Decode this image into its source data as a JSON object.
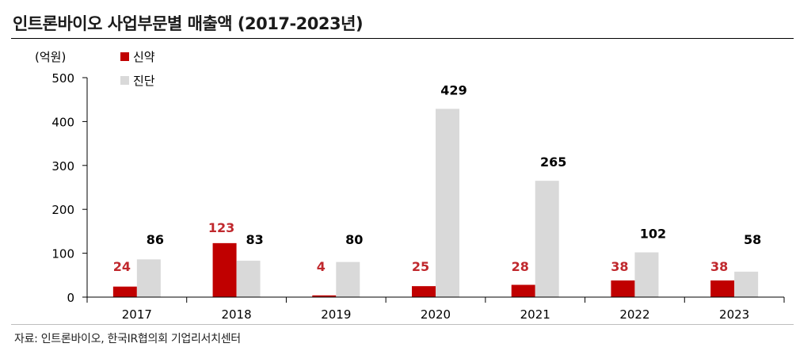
{
  "title": "인트론바이오 사업부문별 매출액 (2017-2023년)",
  "source": "자료: 인트론바이오, 한국IR협의회 기업리서치센터",
  "colors": {
    "series1": "#c00000",
    "series2": "#d9d9d9",
    "label1": "#c0282d",
    "label2": "#000000",
    "axis": "#000000"
  },
  "chart_data": {
    "type": "bar",
    "title": "인트론바이오 사업부문별 매출액 (2017-2023년)",
    "ylabel": "(억원)",
    "xlabel": "",
    "ylim": [
      0,
      500
    ],
    "yticks": [
      0,
      100,
      200,
      300,
      400,
      500
    ],
    "categories": [
      "2017",
      "2018",
      "2019",
      "2020",
      "2021",
      "2022",
      "2023"
    ],
    "series": [
      {
        "name": "신약",
        "values": [
          24,
          123,
          4,
          25,
          28,
          38,
          38
        ]
      },
      {
        "name": "진단",
        "values": [
          86,
          83,
          80,
          429,
          265,
          102,
          58
        ]
      }
    ],
    "legend_position": "top-left",
    "grid": false
  }
}
